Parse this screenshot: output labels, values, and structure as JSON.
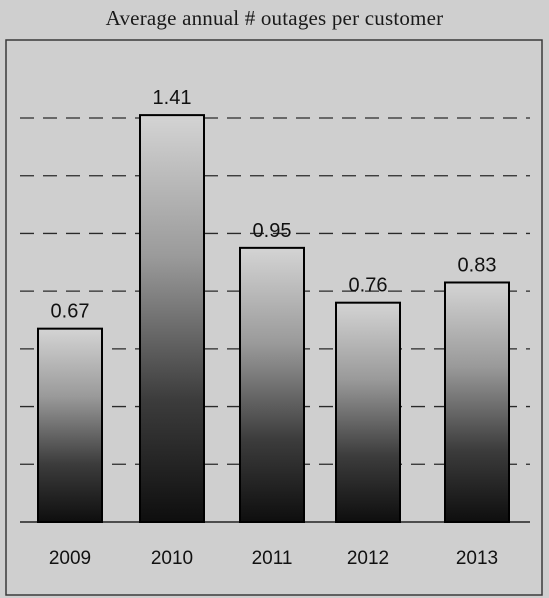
{
  "chart_data": {
    "type": "bar",
    "title": "Average annual # outages per customer",
    "categories": [
      "2009",
      "2010",
      "2011",
      "2012",
      "2013"
    ],
    "values": [
      0.67,
      1.41,
      0.95,
      0.76,
      0.83
    ],
    "data_labels": [
      "0.67",
      "1.41",
      "0.95",
      "0.76",
      "0.83"
    ],
    "xlabel": "",
    "ylabel": "",
    "ylim": [
      0,
      1.4
    ],
    "y_axis_labels_shown": false,
    "grid": "dashed horizontal",
    "legend": "none",
    "colors": {
      "bar_top": "#cfcfcf",
      "bar_bottom": "#0e0e0e",
      "bar_outline": "#000000",
      "gridline": "#2a2a2a",
      "background": "#cfcfcf"
    }
  }
}
